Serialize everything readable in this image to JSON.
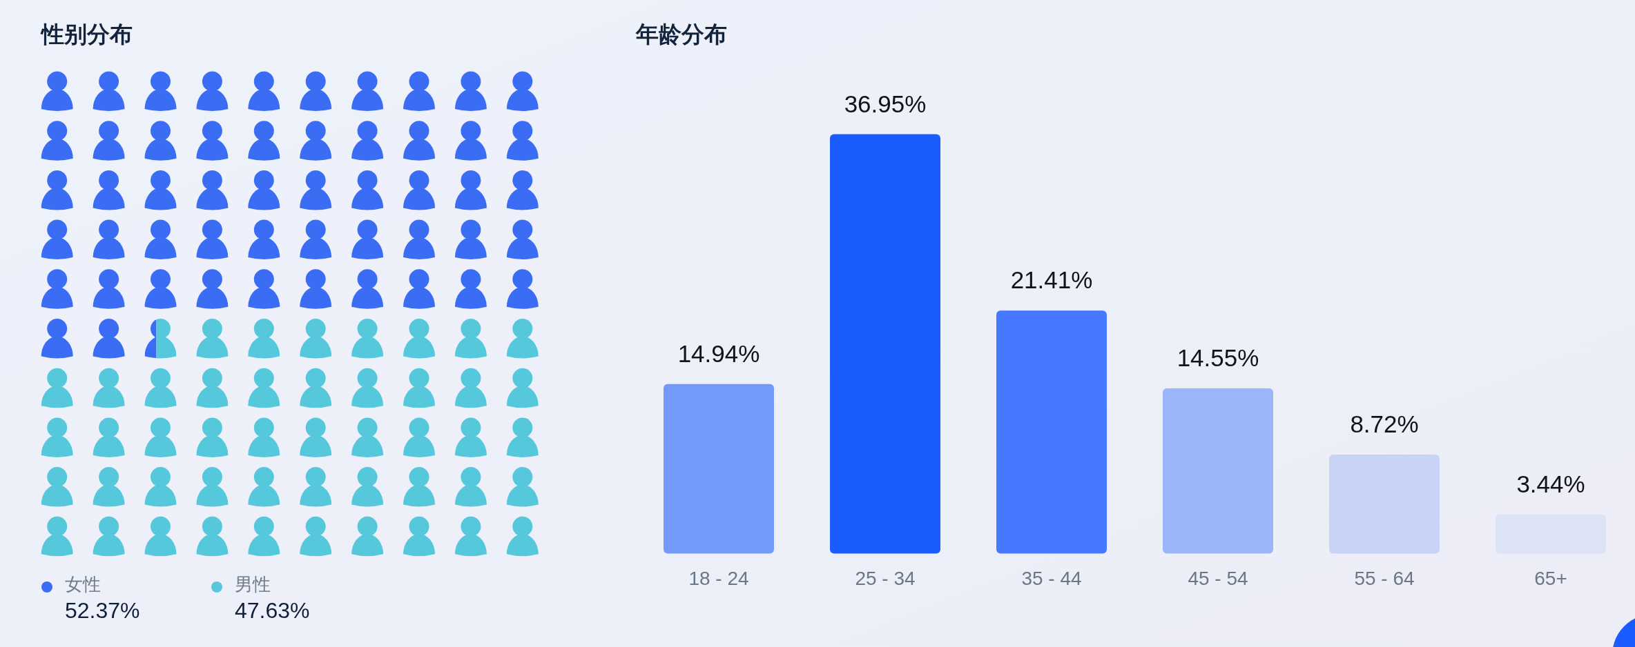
{
  "chart_data": [
    {
      "type": "other",
      "title": "性别分布",
      "series": [
        {
          "name": "女性",
          "color": "#3b6cf4",
          "values": [
            52.37
          ],
          "value_labels": [
            "52.37%"
          ]
        },
        {
          "name": "男性",
          "color": "#56c8dc",
          "values": [
            47.63
          ],
          "value_labels": [
            "47.63%"
          ]
        }
      ],
      "legend": "bottom"
    },
    {
      "type": "bar",
      "title": "年龄分布",
      "categories": [
        "18 - 24",
        "25 - 34",
        "35 - 44",
        "45 - 54",
        "55 - 64",
        "65+"
      ],
      "values": [
        14.94,
        36.95,
        21.41,
        14.55,
        8.72,
        3.44
      ],
      "colors": [
        "#7399fa",
        "#1b5cff",
        "#4679ff",
        "#9bb5f9",
        "#c8d4f6",
        "#dde3f6"
      ],
      "value_labels": [
        "14.94%",
        "36.95%",
        "21.41%",
        "14.55%",
        "8.72%",
        "3.44%"
      ],
      "tick_labels": "x"
    }
  ]
}
